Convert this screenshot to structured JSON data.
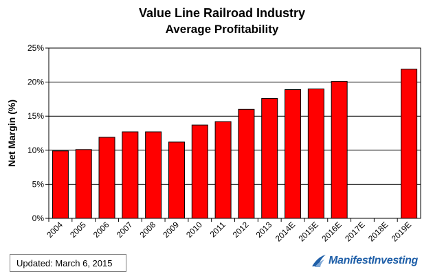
{
  "chart_data": {
    "type": "bar",
    "title": "Value Line Railroad Industry",
    "subtitle": "Average Profitability",
    "ylabel": "Net Margin (%)",
    "xlabel": "",
    "categories": [
      "2004",
      "2005",
      "2006",
      "2007",
      "2008",
      "2009",
      "2010",
      "2011",
      "2012",
      "2013",
      "2014E",
      "2015E",
      "2016E",
      "2017E",
      "2018E",
      "2019E"
    ],
    "values": [
      9.9,
      10.1,
      11.9,
      12.7,
      12.7,
      11.2,
      13.7,
      14.2,
      16.0,
      17.6,
      18.9,
      19.0,
      20.1,
      null,
      null,
      21.9
    ],
    "ylim": [
      0,
      25
    ],
    "yticks": [
      0,
      5,
      10,
      15,
      20,
      25
    ],
    "ytick_labels": [
      "0%",
      "5%",
      "10%",
      "15%",
      "20%",
      "25%"
    ],
    "grid": "horizontal",
    "bar_color": "#ff0000",
    "bar_edge_color": "#000000"
  },
  "footer": {
    "updated": "Updated: March 6, 2015",
    "brand": "ManifestInvesting",
    "brand_color": "#1f5fa8"
  }
}
